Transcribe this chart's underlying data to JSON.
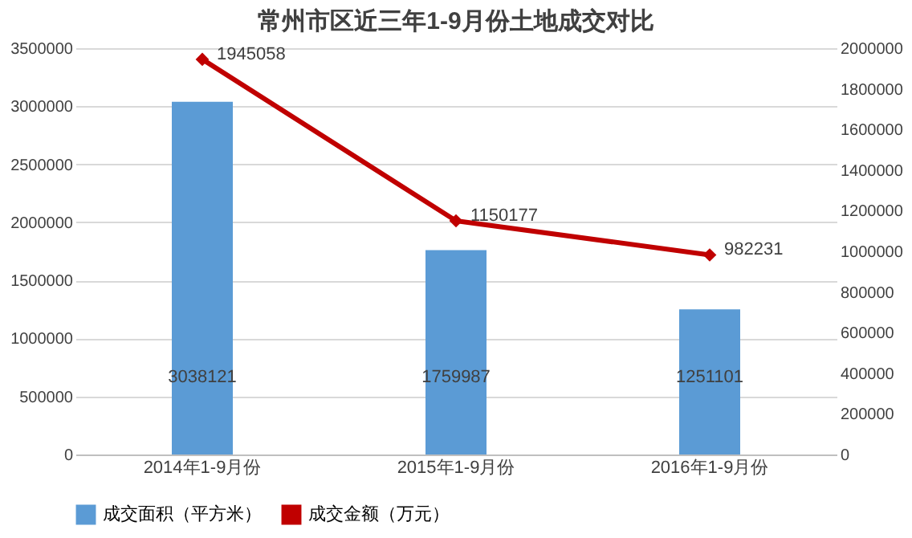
{
  "chart_data": {
    "type": "bar",
    "title": "常州市区近三年1-9月份土地成交对比",
    "categories": [
      "2014年1-9月份",
      "2015年1-9月份",
      "2016年1-9月份"
    ],
    "series": [
      {
        "name": "成交面积（平方米）",
        "color": "#5b9bd5",
        "values": [
          3038121,
          1759987,
          1251101
        ]
      },
      {
        "name": "成交金额（万元）",
        "type": "line",
        "axis": "y2",
        "color": "#c00000",
        "values": [
          1945058,
          1150177,
          982231
        ]
      }
    ],
    "ylim": [
      0,
      3500000
    ],
    "yticks": [
      0,
      500000,
      1000000,
      1500000,
      2000000,
      2500000,
      3000000,
      3500000
    ],
    "y2lim": [
      0,
      2000000
    ],
    "y2ticks": [
      0,
      200000,
      400000,
      600000,
      800000,
      1000000,
      1200000,
      1400000,
      1600000,
      1800000,
      2000000
    ],
    "grid": "y",
    "legend": "bottom",
    "marker": "diamond",
    "line_style": "solid",
    "data_labels": true
  }
}
